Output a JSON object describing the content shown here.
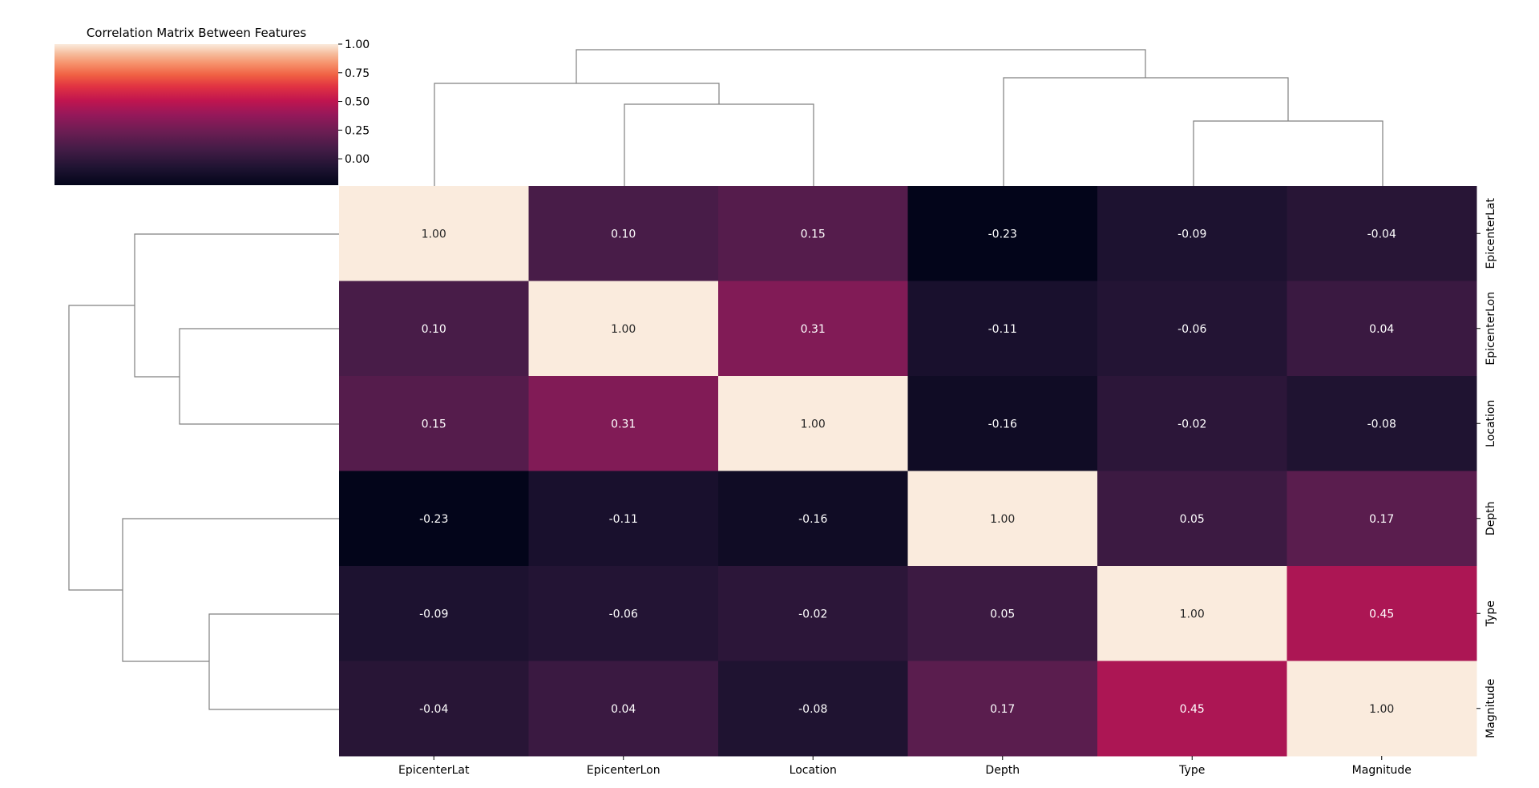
{
  "chart_data": {
    "type": "heatmap",
    "title": "Correlation Matrix Between Features",
    "row_labels": [
      "EpicenterLat",
      "EpicenterLon",
      "Location",
      "Depth",
      "Type",
      "Magnitude"
    ],
    "col_labels": [
      "EpicenterLat",
      "EpicenterLon",
      "Location",
      "Depth",
      "Type",
      "Magnitude"
    ],
    "values": [
      [
        1.0,
        0.1,
        0.15,
        -0.23,
        -0.09,
        -0.04
      ],
      [
        0.1,
        1.0,
        0.31,
        -0.11,
        -0.06,
        0.04
      ],
      [
        0.15,
        0.31,
        1.0,
        -0.16,
        -0.02,
        -0.08
      ],
      [
        -0.23,
        -0.11,
        -0.16,
        1.0,
        0.05,
        0.17
      ],
      [
        -0.09,
        -0.06,
        -0.02,
        0.05,
        1.0,
        0.45
      ],
      [
        -0.04,
        0.04,
        -0.08,
        0.17,
        0.45,
        1.0
      ]
    ],
    "value_format": "2 decimals",
    "colorbar": {
      "range": [
        -0.23,
        1.0
      ],
      "ticks": [
        "1.00",
        "0.75",
        "0.50",
        "0.25",
        "0.00"
      ],
      "colormap": "rocket"
    },
    "col_dendrogram": "clustered columns: (EpicenterLat, (EpicenterLon, Location)) joined with (Depth, (Type, Magnitude))",
    "row_dendrogram": "clustered rows: (EpicenterLat, (EpicenterLon, Location)) joined with (Depth, (Type, Magnitude))",
    "grid": false,
    "legend": "colorbar top-left"
  }
}
